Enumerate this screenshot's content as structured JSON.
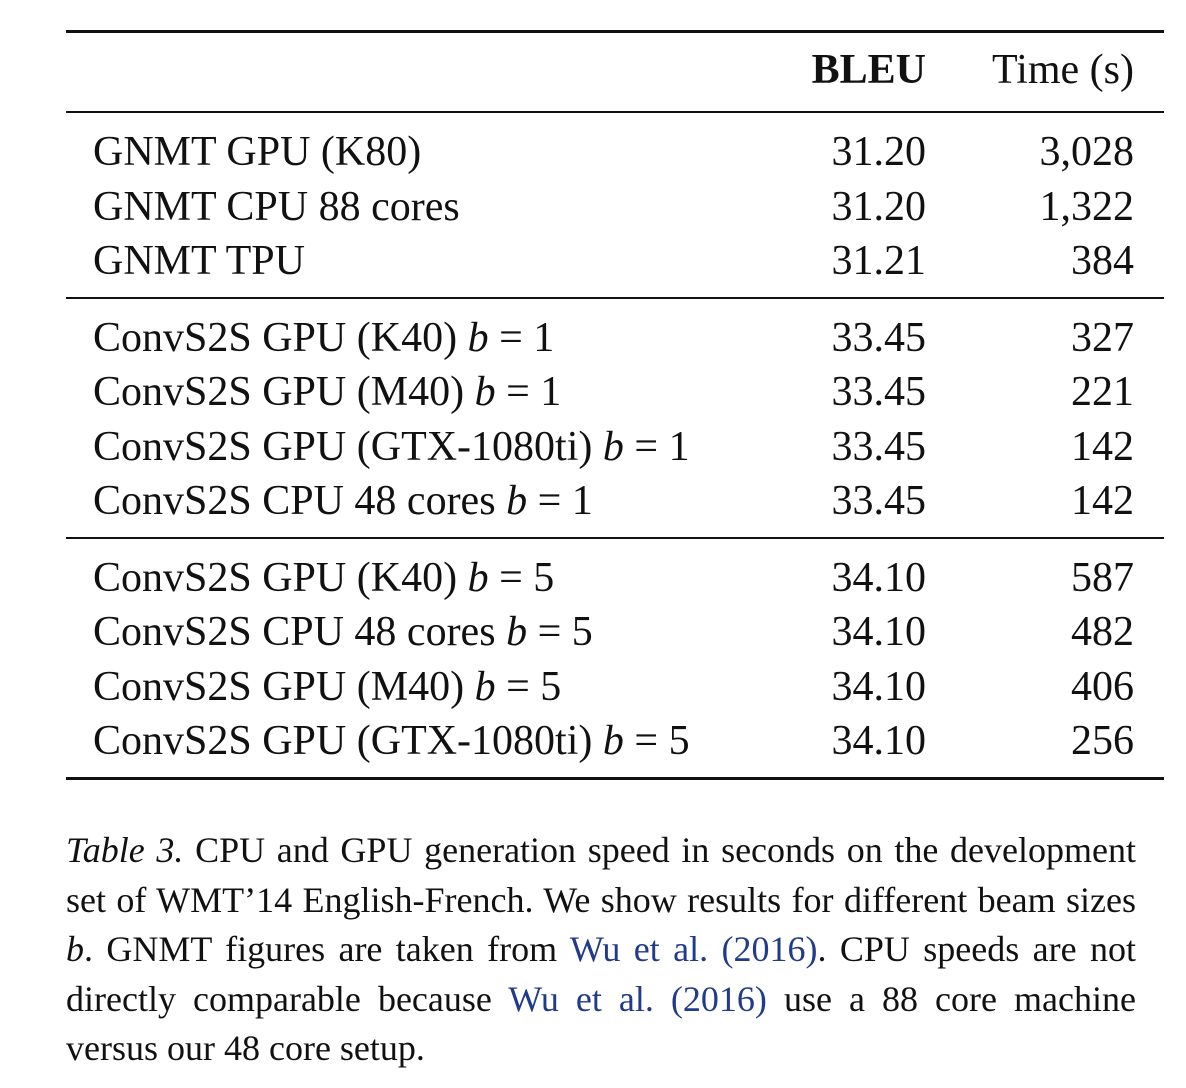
{
  "table": {
    "headers": {
      "model": "",
      "bleu": "BLEU",
      "time": "Time (s)"
    },
    "groups": [
      {
        "rows": [
          {
            "model": "GNMT GPU (K80)",
            "beam": "",
            "bleu": "31.20",
            "time": "3,028"
          },
          {
            "model": "GNMT CPU 88 cores",
            "beam": "",
            "bleu": "31.20",
            "time": "1,322"
          },
          {
            "model": "GNMT TPU",
            "beam": "",
            "bleu": "31.21",
            "time": "384"
          }
        ]
      },
      {
        "rows": [
          {
            "model": "ConvS2S GPU (K40)",
            "beam": "1",
            "bleu": "33.45",
            "time": "327"
          },
          {
            "model": "ConvS2S GPU (M40)",
            "beam": "1",
            "bleu": "33.45",
            "time": "221"
          },
          {
            "model": "ConvS2S GPU (GTX-1080ti)",
            "beam": "1",
            "bleu": "33.45",
            "time": "142"
          },
          {
            "model": "ConvS2S CPU 48 cores",
            "beam": "1",
            "bleu": "33.45",
            "time": "142"
          }
        ]
      },
      {
        "rows": [
          {
            "model": "ConvS2S GPU (K40)",
            "beam": "5",
            "bleu": "34.10",
            "time": "587"
          },
          {
            "model": "ConvS2S CPU 48 cores",
            "beam": "5",
            "bleu": "34.10",
            "time": "482"
          },
          {
            "model": "ConvS2S GPU (M40)",
            "beam": "5",
            "bleu": "34.10",
            "time": "406"
          },
          {
            "model": "ConvS2S GPU (GTX-1080ti)",
            "beam": "5",
            "bleu": "34.10",
            "time": "256"
          }
        ]
      }
    ],
    "beam_symbol": "b",
    "beam_equals": " = "
  },
  "caption": {
    "label": "Table 3.",
    "text_1": " CPU and GPU generation speed in seconds on the development set of WMT’14 English-French. We show results for different beam sizes ",
    "var": "b",
    "text_2": ". GNMT figures are taken from ",
    "cite_1": "Wu et al. (2016)",
    "text_3": ". CPU speeds are not directly comparable because ",
    "cite_2": "Wu et al. (2016)",
    "text_4": " use a 88 core machine versus our 48 core setup."
  }
}
